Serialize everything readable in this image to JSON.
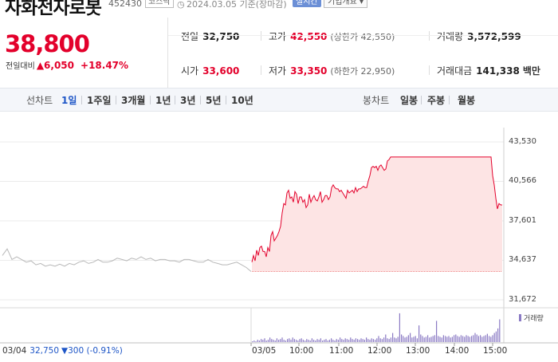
{
  "header": {
    "name": "자화전자로봇",
    "code": "452430",
    "market": "코스닥",
    "clock_icon": "clock-icon",
    "date": "2024.03.05 기준(장마감)",
    "live_label": "실시간",
    "info_label": "기업개요"
  },
  "price": {
    "current": "38,800",
    "change_label": "전일대비",
    "change_amount": "6,050",
    "change_pct": "+18.47%",
    "direction_icon": "up-triangle-icon",
    "color": "#e3002b"
  },
  "stats": {
    "prev_close": {
      "label": "전일",
      "value": "32,750"
    },
    "high": {
      "label": "고가",
      "value": "42,550",
      "sub": "(상한가 42,550)"
    },
    "volume": {
      "label": "거래량",
      "value": "3,572,599"
    },
    "open": {
      "label": "시가",
      "value": "33,600"
    },
    "low": {
      "label": "저가",
      "value": "33,350",
      "sub": "(하한가 22,950)"
    },
    "trade_value": {
      "label": "거래대금",
      "value": "141,338",
      "unit": "백만"
    }
  },
  "tabs": {
    "line_chart": "선차트",
    "periods": [
      "1일",
      "1주일",
      "3개월",
      "1년",
      "3년",
      "5년",
      "10년"
    ],
    "active_period": "1일",
    "candle_chart": "봉차트",
    "candles": [
      "일봉",
      "주봉",
      "월봉"
    ]
  },
  "chart_data": {
    "type": "line",
    "y_ticks": [
      "43,530",
      "40,566",
      "37,601",
      "34,637",
      "31,672"
    ],
    "ylim": [
      31672,
      43530
    ],
    "x_ticks": [
      "03/04",
      "03/05",
      "10:00",
      "11:00",
      "12:00",
      "13:00",
      "14:00",
      "15:00"
    ],
    "prev_day": {
      "date": "03/04",
      "price": "32,750",
      "change": "▼300 (-0.91%)"
    },
    "volume_legend": "거래량",
    "colors": {
      "today_line": "#e3002b",
      "today_fill": "#fde4e4",
      "prev_line": "#b8b8b8",
      "volume": "#8a7ac4"
    },
    "series": [
      {
        "values": [
          [
            0,
            35000
          ],
          [
            2,
            35500
          ],
          [
            4,
            34700
          ],
          [
            6,
            34900
          ],
          [
            8,
            34700
          ],
          [
            10,
            34500
          ],
          [
            12,
            34600
          ],
          [
            14,
            34300
          ],
          [
            16,
            34400
          ],
          [
            18,
            34200
          ],
          [
            20,
            34300
          ],
          [
            22,
            34200
          ],
          [
            24,
            34350
          ],
          [
            26,
            34200
          ],
          [
            28,
            34400
          ],
          [
            30,
            34300
          ],
          [
            32,
            34500
          ],
          [
            34,
            34600
          ],
          [
            36,
            34400
          ],
          [
            38,
            34500
          ],
          [
            40,
            34700
          ],
          [
            42,
            34500
          ],
          [
            44,
            34500
          ],
          [
            46,
            34600
          ],
          [
            48,
            34800
          ],
          [
            50,
            34700
          ],
          [
            52,
            34600
          ],
          [
            54,
            34800
          ],
          [
            56,
            34700
          ],
          [
            58,
            34900
          ],
          [
            60,
            34700
          ],
          [
            62,
            34800
          ],
          [
            64,
            34600
          ],
          [
            66,
            34700
          ],
          [
            68,
            34700
          ],
          [
            70,
            34600
          ],
          [
            72,
            34600
          ],
          [
            74,
            34500
          ],
          [
            76,
            34700
          ],
          [
            78,
            34700
          ],
          [
            80,
            34600
          ],
          [
            82,
            34500
          ],
          [
            84,
            34500
          ],
          [
            86,
            34700
          ],
          [
            88,
            34500
          ],
          [
            90,
            34400
          ],
          [
            92,
            34300
          ],
          [
            94,
            34300
          ],
          [
            96,
            34400
          ],
          [
            98,
            34500
          ],
          [
            100,
            34300
          ],
          [
            102,
            34100
          ],
          [
            104,
            33800
          ]
        ]
      },
      {
        "values": [
          [
            0,
            34500
          ],
          [
            2,
            35000
          ],
          [
            4,
            34600
          ],
          [
            6,
            35400
          ],
          [
            8,
            35000
          ],
          [
            10,
            35600
          ],
          [
            12,
            35700
          ],
          [
            14,
            35300
          ],
          [
            16,
            35300
          ],
          [
            18,
            34900
          ],
          [
            20,
            35600
          ],
          [
            22,
            35300
          ],
          [
            24,
            36500
          ],
          [
            26,
            36800
          ],
          [
            28,
            36100
          ],
          [
            30,
            36300
          ],
          [
            32,
            36500
          ],
          [
            34,
            36800
          ],
          [
            36,
            37200
          ],
          [
            38,
            38200
          ],
          [
            40,
            38900
          ],
          [
            42,
            38800
          ],
          [
            44,
            39700
          ],
          [
            46,
            39900
          ],
          [
            48,
            39300
          ],
          [
            50,
            39400
          ],
          [
            52,
            39000
          ],
          [
            54,
            39800
          ],
          [
            56,
            39600
          ],
          [
            58,
            38900
          ],
          [
            60,
            39400
          ],
          [
            62,
            39400
          ],
          [
            64,
            39000
          ],
          [
            66,
            39200
          ],
          [
            68,
            38600
          ],
          [
            70,
            38800
          ],
          [
            72,
            39600
          ],
          [
            74,
            39000
          ],
          [
            76,
            39300
          ],
          [
            78,
            39500
          ],
          [
            80,
            39200
          ],
          [
            82,
            39100
          ],
          [
            84,
            39400
          ],
          [
            86,
            39800
          ],
          [
            88,
            39000
          ],
          [
            90,
            39200
          ],
          [
            92,
            39500
          ],
          [
            94,
            39500
          ],
          [
            96,
            39200
          ],
          [
            98,
            39400
          ],
          [
            100,
            40100
          ],
          [
            102,
            40300
          ],
          [
            104,
            40100
          ],
          [
            106,
            40000
          ],
          [
            108,
            40000
          ],
          [
            110,
            39800
          ],
          [
            112,
            39900
          ],
          [
            114,
            39700
          ],
          [
            116,
            39500
          ],
          [
            118,
            39300
          ],
          [
            120,
            39900
          ],
          [
            122,
            39700
          ],
          [
            124,
            39800
          ],
          [
            126,
            39900
          ],
          [
            128,
            39700
          ],
          [
            130,
            40100
          ],
          [
            132,
            39800
          ],
          [
            134,
            40000
          ],
          [
            136,
            40000
          ],
          [
            138,
            40100
          ],
          [
            140,
            40200
          ],
          [
            142,
            40100
          ],
          [
            144,
            40100
          ],
          [
            146,
            40600
          ],
          [
            148,
            41000
          ],
          [
            150,
            41600
          ],
          [
            152,
            41700
          ],
          [
            154,
            41600
          ],
          [
            156,
            41700
          ],
          [
            158,
            41400
          ],
          [
            160,
            41700
          ],
          [
            162,
            41800
          ],
          [
            164,
            41600
          ],
          [
            166,
            41400
          ],
          [
            168,
            41500
          ],
          [
            170,
            42100
          ],
          [
            172,
            42200
          ],
          [
            174,
            42400
          ],
          [
            176,
            42400
          ],
          [
            178,
            42400
          ],
          [
            180,
            42400
          ],
          [
            182,
            42400
          ],
          [
            184,
            42400
          ],
          [
            186,
            42400
          ],
          [
            188,
            42400
          ],
          [
            190,
            42400
          ],
          [
            192,
            42400
          ],
          [
            194,
            42400
          ],
          [
            196,
            42400
          ],
          [
            198,
            42400
          ],
          [
            200,
            42400
          ],
          [
            202,
            42400
          ],
          [
            204,
            42400
          ],
          [
            206,
            42400
          ],
          [
            208,
            42400
          ],
          [
            210,
            42400
          ],
          [
            212,
            42400
          ],
          [
            214,
            42400
          ],
          [
            216,
            42400
          ],
          [
            218,
            42400
          ],
          [
            220,
            42400
          ],
          [
            222,
            42400
          ],
          [
            224,
            42400
          ],
          [
            226,
            42400
          ],
          [
            228,
            42400
          ],
          [
            230,
            42400
          ],
          [
            232,
            42400
          ],
          [
            234,
            42400
          ],
          [
            236,
            42400
          ],
          [
            238,
            42400
          ],
          [
            240,
            42400
          ],
          [
            242,
            42400
          ],
          [
            244,
            42400
          ],
          [
            246,
            42400
          ],
          [
            248,
            42400
          ],
          [
            250,
            42400
          ],
          [
            252,
            42400
          ],
          [
            254,
            42400
          ],
          [
            256,
            42400
          ],
          [
            258,
            42400
          ],
          [
            260,
            42400
          ],
          [
            262,
            42400
          ],
          [
            264,
            42400
          ],
          [
            266,
            42400
          ],
          [
            268,
            42400
          ],
          [
            270,
            42400
          ],
          [
            272,
            42400
          ],
          [
            274,
            42400
          ],
          [
            276,
            42400
          ],
          [
            278,
            42400
          ],
          [
            280,
            42400
          ],
          [
            282,
            42400
          ],
          [
            284,
            42400
          ],
          [
            286,
            42400
          ],
          [
            288,
            42400
          ],
          [
            290,
            42400
          ],
          [
            292,
            42400
          ],
          [
            294,
            42400
          ],
          [
            296,
            42400
          ],
          [
            298,
            42400
          ],
          [
            300,
            42400
          ],
          [
            302,
            41000
          ],
          [
            304,
            40300
          ],
          [
            306,
            39300
          ],
          [
            308,
            38500
          ],
          [
            310,
            38900
          ],
          [
            312,
            38800
          ],
          [
            314,
            38800
          ]
        ]
      }
    ],
    "volume": [
      1,
      2,
      1,
      3,
      2,
      4,
      3,
      5,
      2,
      3,
      6,
      4,
      3,
      2,
      5,
      3,
      4,
      6,
      3,
      2,
      4,
      5,
      3,
      6,
      4,
      3,
      2,
      4,
      5,
      3,
      2,
      4,
      3,
      2,
      5,
      3,
      2,
      4,
      3,
      5,
      2,
      3,
      4,
      2,
      3,
      5,
      3,
      2,
      4,
      3,
      6,
      4,
      3,
      5,
      4,
      3,
      6,
      4,
      3,
      5,
      4,
      3,
      5,
      4,
      3,
      6,
      4,
      3,
      5,
      4,
      3,
      5,
      8,
      5,
      4,
      6,
      10,
      5,
      4,
      6,
      12,
      6,
      5,
      7,
      38,
      10,
      8,
      6,
      7,
      9,
      12,
      6,
      7,
      8,
      5,
      22,
      10,
      8,
      6,
      7,
      9,
      6,
      7,
      8,
      9,
      28,
      8,
      7,
      6,
      9,
      8,
      7,
      8,
      6,
      7,
      9,
      10,
      8,
      7,
      9,
      8,
      7,
      9,
      8,
      7,
      8,
      9,
      12,
      10,
      8,
      9,
      7,
      8,
      9,
      11,
      8,
      7,
      9,
      12,
      14,
      18,
      30
    ]
  }
}
